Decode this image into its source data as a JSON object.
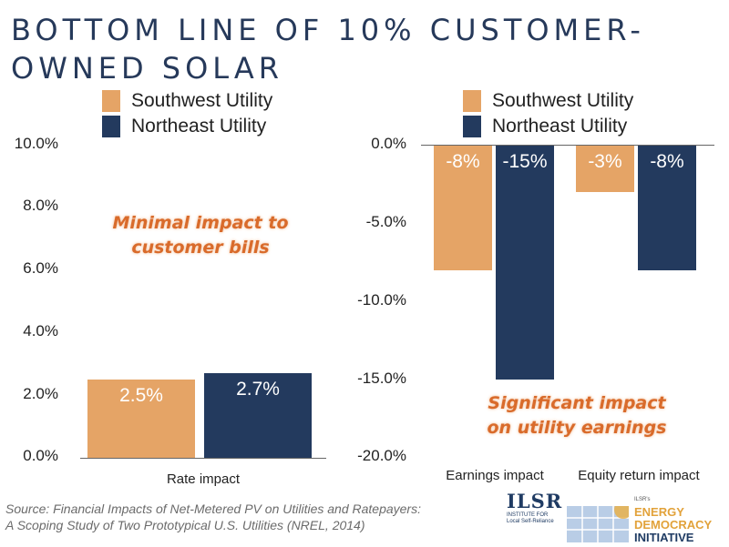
{
  "title": {
    "line1": "BOTTOM LINE OF 10% CUSTOMER-",
    "line2": "OWNED SOLAR"
  },
  "colors": {
    "southwest": "#e5a466",
    "northeast": "#233a5e",
    "title": "#26395a",
    "annotation": "#d96b2b"
  },
  "chart_data": [
    {
      "type": "bar",
      "categories": [
        "Rate impact"
      ],
      "series": [
        {
          "name": "Southwest Utility",
          "values": [
            2.5
          ],
          "labels": [
            "2.5%"
          ]
        },
        {
          "name": "Northeast Utility",
          "values": [
            2.7
          ],
          "labels": [
            "2.7%"
          ]
        }
      ],
      "ylim": [
        0,
        10
      ],
      "yticks": [
        "0.0%",
        "2.0%",
        "4.0%",
        "6.0%",
        "8.0%",
        "10.0%"
      ],
      "ytick_values": [
        0,
        2,
        4,
        6,
        8,
        10
      ],
      "annotation": [
        "Minimal impact to",
        "customer bills"
      ],
      "legend": "top"
    },
    {
      "type": "bar",
      "categories": [
        "Earnings impact",
        "Equity return impact"
      ],
      "series": [
        {
          "name": "Southwest Utility",
          "values": [
            -8,
            -3
          ],
          "labels": [
            "-8%",
            "-3%"
          ]
        },
        {
          "name": "Northeast Utility",
          "values": [
            -15,
            -8
          ],
          "labels": [
            "-15%",
            "-8%"
          ]
        }
      ],
      "ylim": [
        -20,
        0
      ],
      "yticks": [
        "0.0%",
        "-5.0%",
        "-10.0%",
        "-15.0%",
        "-20.0%"
      ],
      "ytick_values": [
        0,
        -5,
        -10,
        -15,
        -20
      ],
      "annotation": [
        "Significant impact",
        "on utility earnings"
      ],
      "legend": "top"
    }
  ],
  "source": {
    "line1": "Source: Financial Impacts of Net-Metered PV on Utilities and Ratepayers:",
    "line2": "A Scoping Study of Two Prototypical U.S. Utilities (NREL, 2014)"
  },
  "logos": {
    "ilsr": {
      "name": "ILSR",
      "tagline1": "INSTITUTE FOR",
      "tagline2": "Local Self-Reliance"
    },
    "edi": {
      "prefix": "ILSR's",
      "line1": "ENERGY",
      "line2": "DEMOCRACY",
      "line3": "INITIATIVE"
    }
  }
}
